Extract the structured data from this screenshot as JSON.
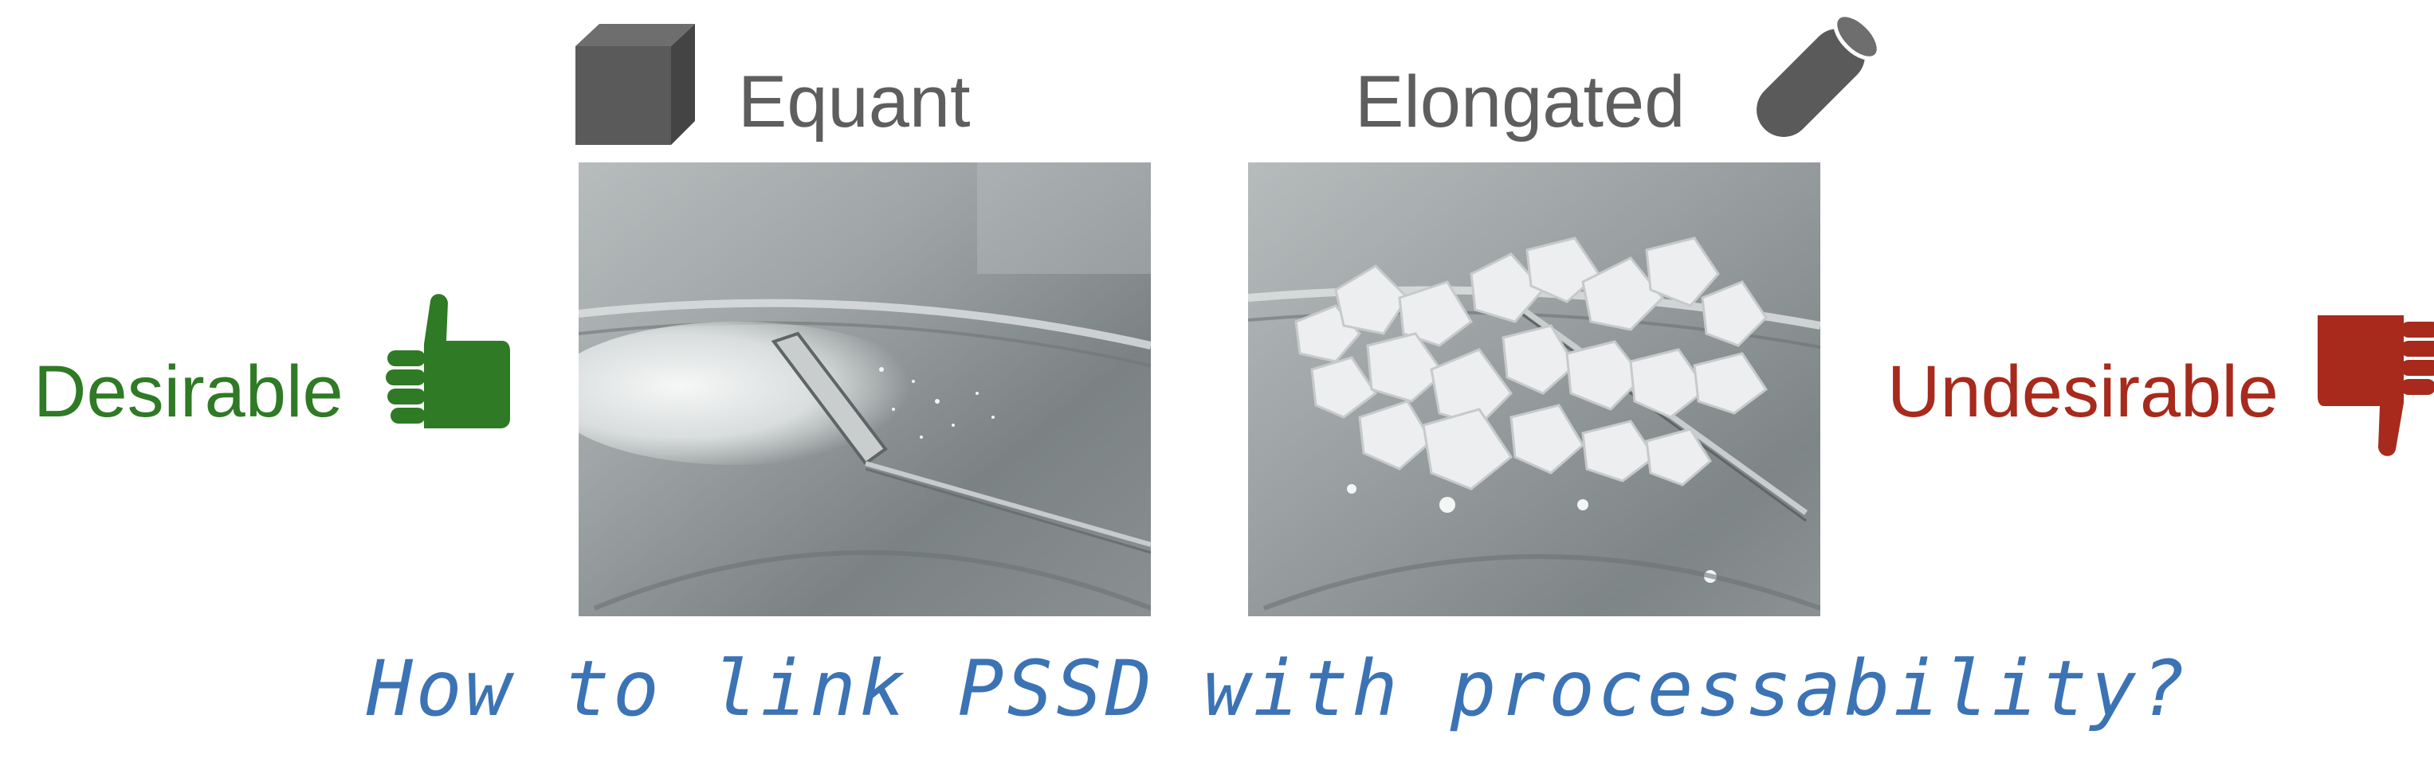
{
  "header": {
    "equant_label": "Equant",
    "elongated_label": "Elongated"
  },
  "side_labels": {
    "desirable": "Desirable",
    "undesirable": "Undesirable"
  },
  "question": "How to link PSSD with processability?",
  "icons": {
    "equant": "cube-icon",
    "elongated": "cylinder-rod-icon",
    "desirable": "thumbs-up-icon",
    "undesirable": "thumbs-down-icon"
  },
  "colors": {
    "shape_label": "#5e5e5e",
    "desirable": "#2f7a25",
    "undesirable": "#a72a1c",
    "question": "#3b73b5",
    "shape_icon": "#5a5a5a"
  }
}
